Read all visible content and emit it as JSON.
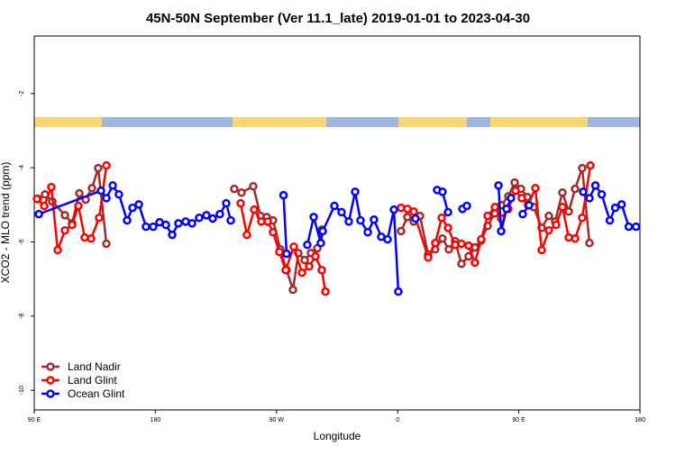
{
  "chart_data": {
    "type": "line",
    "title": "45N-50N September (Ver 11.1_late)   2019-01-01 to 2023-04-30",
    "x_label": "Longitude",
    "y_label": "XCO2 - MLO trend (ppm)",
    "xlim": [
      90,
      540
    ],
    "ylim": [
      -10.53,
      -0.45
    ],
    "xticks": [
      {
        "value": 90,
        "label": "90 E"
      },
      180,
      {
        "value": 270,
        "label": "90 W"
      },
      {
        "value": 360,
        "label": "0"
      },
      {
        "value": 450,
        "label": "90 E"
      },
      {
        "value": 540,
        "label": "180"
      }
    ],
    "yticks": [
      -10,
      -8,
      -6,
      -4,
      -2
    ],
    "legend": "bottom-left",
    "series": [
      {
        "name": "Land Nadir",
        "color": "#a52a2a",
        "x": [
          92.7,
          98.0,
          103.4,
          112.8,
          118.1,
          123.5,
          128.2,
          132.9,
          137.5,
          143.6,
          null,
          238.6,
          244.0,
          252.7,
          258.1,
          262.8,
          267.4,
          272.8,
          277.5,
          282.2,
          286.2,
          290.9,
          295.6,
          300.3,
          303.6,
          null,
          362.5,
          367.2,
          371.9,
          376.6,
          382.6,
          387.9,
          393.3,
          398.0,
          402.7,
          407.4,
          412.7,
          417.4,
          422.1,
          426.8,
          432.2,
          436.9,
          442.2,
          446.9,
          451.6,
          456.3,
          461.0,
          467.0,
          472.3,
          477.0,
          482.4,
          487.1,
          491.8,
          497.1,
          502.5
        ],
        "values": [
          -4.84,
          -4.72,
          -4.91,
          -5.28,
          -5.5,
          -4.69,
          -4.86,
          -4.55,
          -4.01,
          -6.05,
          null,
          -4.57,
          -4.67,
          -4.5,
          -5.3,
          -5.33,
          -5.42,
          -6.2,
          -6.76,
          -7.29,
          -6.3,
          -6.49,
          -6.3,
          -6.17,
          -5.67,
          null,
          -5.71,
          -5.33,
          -5.45,
          -5.3,
          -6.34,
          -6.2,
          -5.91,
          -6.2,
          -5.98,
          -6.59,
          -6.39,
          -6.15,
          -5.96,
          -5.57,
          -5.23,
          -5.01,
          -4.77,
          -4.4,
          -4.57,
          -4.79,
          -5.06,
          -5.62,
          -5.3,
          -5.45,
          -4.67,
          -5.18,
          -4.57,
          -4.01,
          -6.03
        ]
      },
      {
        "name": "Land Glint",
        "color": "#ff0000",
        "x": [
          92.0,
          97.4,
          102.7,
          107.4,
          112.8,
          118.1,
          122.8,
          127.5,
          132.2,
          138.2,
          143.6,
          null,
          243.3,
          248.0,
          253.4,
          258.7,
          263.4,
          267.4,
          272.1,
          276.8,
          282.8,
          288.9,
          294.2,
          298.9,
          303.6,
          306.3,
          null,
          362.5,
          367.2,
          371.9,
          382.6,
          387.9,
          392.7,
          397.4,
          402.7,
          407.4,
          412.7,
          417.4,
          422.1,
          426.8,
          432.2,
          436.9,
          442.2,
          447.6,
          452.2,
          456.9,
          462.3,
          467.0,
          472.3,
          477.7,
          482.4,
          487.1,
          491.8,
          497.1,
          503.2
        ],
        "values": [
          -4.84,
          -5.03,
          -4.52,
          -6.22,
          -5.69,
          -5.54,
          -5.03,
          -5.88,
          -5.91,
          -5.35,
          -3.94,
          null,
          -4.96,
          -5.81,
          -5.13,
          -5.45,
          -5.45,
          -5.74,
          -6.27,
          -6.76,
          -6.13,
          -6.83,
          -6.66,
          -6.39,
          -6.76,
          -7.34,
          null,
          -5.08,
          -5.11,
          -5.18,
          -6.42,
          -6.03,
          -5.35,
          -5.62,
          -6.08,
          -6.05,
          -6.1,
          -6.56,
          -5.93,
          -5.3,
          -5.06,
          -5.37,
          -5.11,
          -4.62,
          -4.82,
          -5.01,
          -4.55,
          -6.22,
          -5.69,
          -5.54,
          -5.06,
          -5.88,
          -5.91,
          -5.35,
          -3.94
        ]
      },
      {
        "name": "Ocean Glint",
        "color": "#0000ff",
        "x": [
          93.4,
          139.6,
          143.6,
          148.3,
          152.9,
          159.0,
          163.0,
          167.7,
          173.0,
          178.4,
          183.1,
          187.8,
          192.5,
          197.1,
          202.5,
          207.2,
          212.5,
          217.9,
          222.6,
          227.9,
          232.6,
          236.0,
          null,
          275.2,
          277.5,
          null,
          292.9,
          297.6,
          302.9,
          304.3,
          313.0,
          318.3,
          323.7,
          328.4,
          332.4,
          337.8,
          342.4,
          347.8,
          352.5,
          357.2,
          360.5,
          null,
          373.2,
          null,
          389.3,
          393.3,
          397.4,
          null,
          408.1,
          411.4,
          null,
          434.9,
          436.9,
          440.9,
          444.2,
          null,
          452.9,
          457.6,
          null,
          497.8,
          502.5,
          506.9,
          511.6,
          517.6,
          521.6,
          526.4,
          531.7,
          537.1
        ],
        "values": [
          -5.25,
          -4.62,
          -4.82,
          -4.48,
          -4.72,
          -5.42,
          -5.08,
          -4.99,
          -5.59,
          -5.59,
          -5.47,
          -5.54,
          -5.81,
          -5.5,
          -5.45,
          -5.5,
          -5.35,
          -5.28,
          -5.37,
          -5.25,
          -4.96,
          -5.42,
          null,
          -4.74,
          -6.32,
          null,
          -6.08,
          -5.33,
          -6.03,
          -5.71,
          -5.03,
          -5.2,
          -5.45,
          -4.65,
          -5.42,
          -5.74,
          -5.4,
          -5.86,
          -5.93,
          -5.13,
          -7.34,
          null,
          -5.37,
          null,
          -4.6,
          -4.65,
          -5.2,
          null,
          -5.11,
          -5.03,
          null,
          -4.48,
          -5.71,
          -5.11,
          -4.82,
          null,
          -5.25,
          -5.01,
          null,
          -4.65,
          -4.82,
          -4.48,
          -4.72,
          -5.42,
          -5.08,
          -4.99,
          -5.59,
          -5.59
        ]
      }
    ]
  }
}
